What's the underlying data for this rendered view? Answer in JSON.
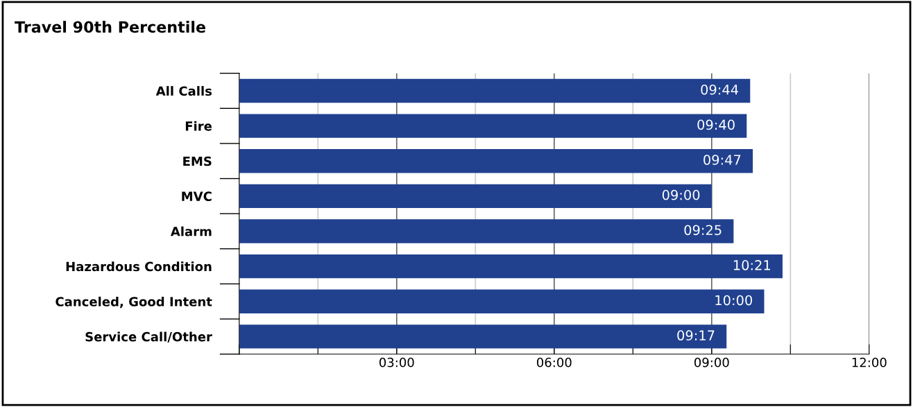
{
  "chart_data": {
    "type": "bar",
    "orientation": "horizontal",
    "title": "Travel 90th Percentile",
    "categories": [
      "All Calls",
      "Fire",
      "EMS",
      "MVC",
      "Alarm",
      "Hazardous Condition",
      "Canceled, Good Intent",
      "Service Call/Other"
    ],
    "values": [
      9.733,
      9.667,
      9.783,
      9.0,
      9.417,
      10.35,
      10.0,
      9.283
    ],
    "value_labels": [
      "09:44",
      "09:40",
      "09:47",
      "09:00",
      "09:25",
      "10:21",
      "10:00",
      "09:17"
    ],
    "color": "#21418f",
    "xlim": [
      0,
      12
    ],
    "xticks": [
      {
        "value": 0,
        "label": null
      },
      {
        "value": 1.5,
        "label": null
      },
      {
        "value": 3,
        "label": "03:00"
      },
      {
        "value": 4.5,
        "label": null
      },
      {
        "value": 6,
        "label": "06:00"
      },
      {
        "value": 7.5,
        "label": null
      },
      {
        "value": 9,
        "label": "09:00"
      },
      {
        "value": 10.5,
        "label": null
      },
      {
        "value": 12,
        "label": "12:00"
      }
    ],
    "grid": "x",
    "legend": false
  }
}
